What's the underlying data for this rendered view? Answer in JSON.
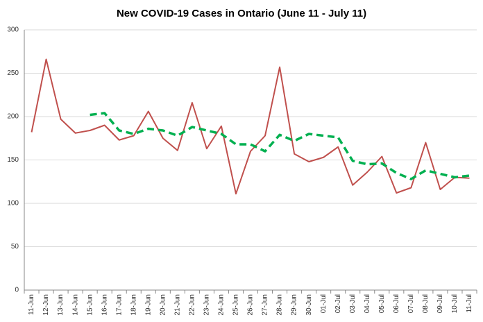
{
  "chart_data": {
    "type": "line",
    "title": "New COVID-19 Cases in Ontario (June 11 - July 11)",
    "categories": [
      "11-Jun",
      "12-Jun",
      "13-Jun",
      "14-Jun",
      "15-Jun",
      "16-Jun",
      "17-Jun",
      "18-Jun",
      "19-Jun",
      "20-Jun",
      "21-Jun",
      "22-Jun",
      "23-Jun",
      "24-Jun",
      "25-Jun",
      "26-Jun",
      "27-Jun",
      "28-Jun",
      "29-Jun",
      "30-Jun",
      "01-Jul",
      "02-Jul",
      "03-Jul",
      "04-Jul",
      "05-Jul",
      "06-Jul",
      "07-Jul",
      "08-Jul",
      "09-Jul",
      "10-Jul",
      "11-Jul"
    ],
    "series": [
      {
        "color": "#c0504d",
        "dashed": false,
        "values": [
          182,
          266,
          197,
          181,
          184,
          190,
          173,
          178,
          206,
          175,
          161,
          216,
          163,
          189,
          111,
          160,
          178,
          257,
          157,
          148,
          153,
          165,
          121,
          136,
          154,
          112,
          118,
          170,
          116,
          130,
          129
        ]
      },
      {
        "color": "#00b050",
        "dashed": true,
        "values": [
          null,
          null,
          null,
          null,
          202,
          204,
          184,
          180,
          186,
          184,
          178,
          188,
          184,
          180,
          168,
          168,
          160,
          179,
          172,
          180,
          178,
          176,
          149,
          145,
          146,
          135,
          128,
          138,
          134,
          130,
          132
        ]
      }
    ],
    "ylim": [
      0,
      300
    ],
    "yticks": [
      0,
      50,
      100,
      150,
      200,
      250,
      300
    ],
    "grid": true
  }
}
